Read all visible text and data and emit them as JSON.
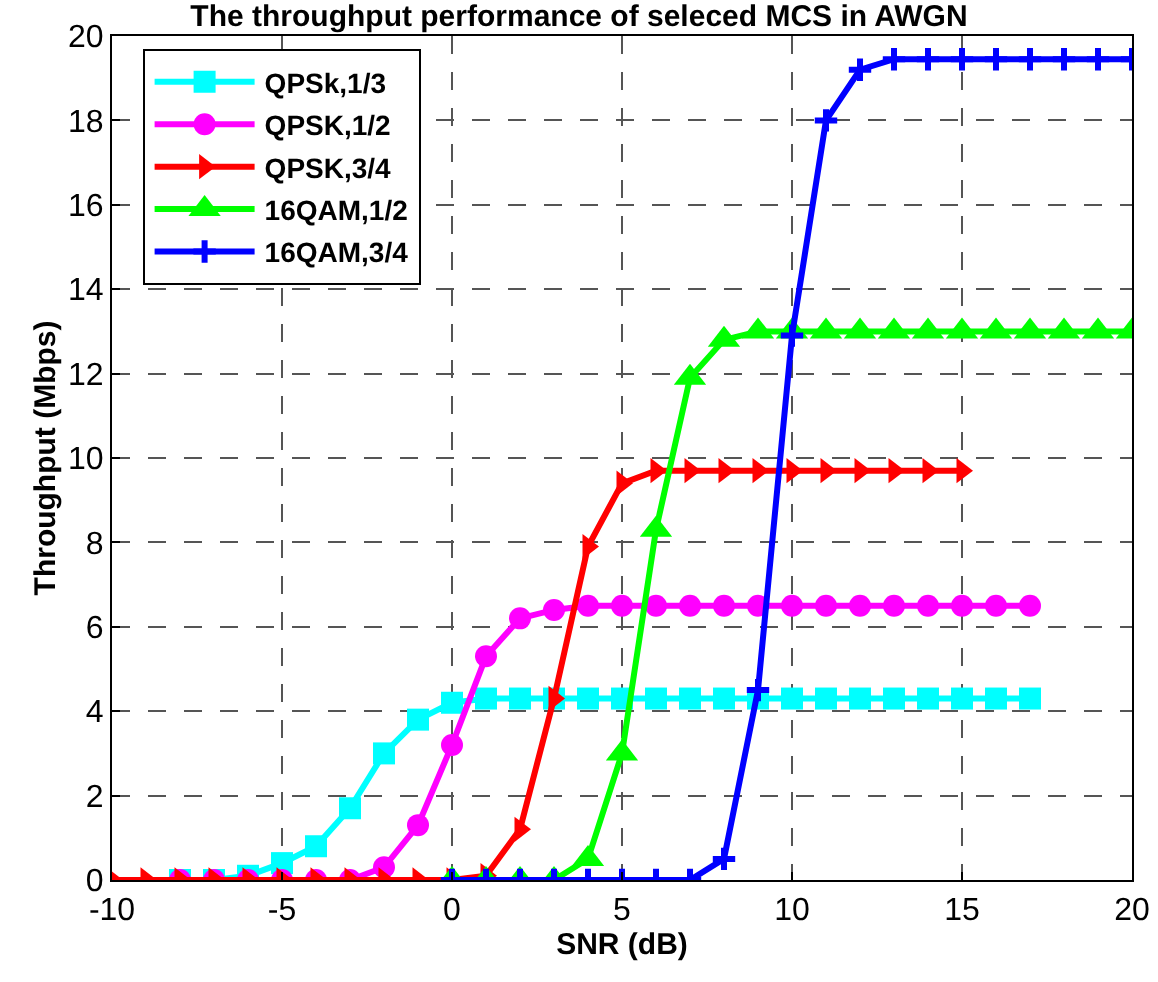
{
  "chart_data": {
    "type": "line",
    "title": "The throughput performance of seleced MCS in AWGN",
    "xlabel": "SNR (dB)",
    "ylabel": "Throughput (Mbps)",
    "xlim": [
      -10,
      20
    ],
    "xticks": [
      -10,
      -5,
      0,
      5,
      10,
      15,
      20
    ],
    "ylim": [
      0,
      20
    ],
    "yticks": [
      0,
      2,
      4,
      6,
      8,
      10,
      12,
      14,
      16,
      18,
      20
    ],
    "grid": true,
    "legend": "top left",
    "series": [
      {
        "name": "QPSk,1/3",
        "color": "#00ffff",
        "marker": "square",
        "x": [
          -8,
          -7,
          -6,
          -5,
          -4,
          -3,
          -2,
          -1,
          0,
          1,
          2,
          3,
          4,
          5,
          6,
          7,
          8,
          9,
          10,
          11,
          12,
          13,
          14,
          15,
          16,
          17
        ],
        "values": [
          0,
          0,
          0.1,
          0.4,
          0.8,
          1.7,
          3.0,
          3.8,
          4.2,
          4.3,
          4.3,
          4.3,
          4.3,
          4.3,
          4.3,
          4.3,
          4.3,
          4.3,
          4.3,
          4.3,
          4.3,
          4.3,
          4.3,
          4.3,
          4.3,
          4.3
        ]
      },
      {
        "name": "QPSK,1/2",
        "color": "#ff00ff",
        "marker": "circle",
        "x": [
          -8,
          -7,
          -6,
          -5,
          -4,
          -3,
          -2,
          -1,
          0,
          1,
          2,
          3,
          4,
          5,
          6,
          7,
          8,
          9,
          10,
          11,
          12,
          13,
          14,
          15,
          16,
          17
        ],
        "values": [
          0,
          0,
          0,
          0,
          0,
          0,
          0.3,
          1.3,
          3.2,
          5.3,
          6.2,
          6.4,
          6.5,
          6.5,
          6.5,
          6.5,
          6.5,
          6.5,
          6.5,
          6.5,
          6.5,
          6.5,
          6.5,
          6.5,
          6.5,
          6.5
        ]
      },
      {
        "name": "QPSK,3/4",
        "color": "#ff0000",
        "marker": "triangle-right",
        "x": [
          -10,
          -9,
          -8,
          -7,
          -6,
          -5,
          -4,
          -3,
          -2,
          -1,
          0,
          1,
          2,
          3,
          4,
          5,
          6,
          7,
          8,
          9,
          10,
          11,
          12,
          13,
          14,
          15
        ],
        "values": [
          0,
          0,
          0,
          0,
          0,
          0,
          0,
          0,
          0,
          0,
          0,
          0.1,
          1.2,
          4.3,
          7.9,
          9.4,
          9.7,
          9.7,
          9.7,
          9.7,
          9.7,
          9.7,
          9.7,
          9.7,
          9.7,
          9.7
        ]
      },
      {
        "name": "16QAM,1/2",
        "color": "#00ff00",
        "marker": "triangle",
        "x": [
          0,
          1,
          2,
          3,
          4,
          5,
          6,
          7,
          8,
          9,
          10,
          11,
          12,
          13,
          14,
          15,
          16,
          17,
          18,
          19,
          20
        ],
        "values": [
          0,
          0,
          0,
          0,
          0.5,
          3.0,
          8.3,
          11.9,
          12.8,
          13.0,
          13.0,
          13.0,
          13.0,
          13.0,
          13.0,
          13.0,
          13.0,
          13.0,
          13.0,
          13.0,
          13.0
        ]
      },
      {
        "name": "16QAM,3/4",
        "color": "#0000ff",
        "marker": "cross",
        "x": [
          0,
          1,
          2,
          3,
          4,
          5,
          6,
          7,
          8,
          9,
          10,
          11,
          12,
          13,
          14,
          15,
          16,
          17,
          18,
          19,
          20
        ],
        "values": [
          0,
          0,
          0,
          0,
          0,
          0,
          0,
          0,
          0.5,
          4.5,
          12.9,
          18.0,
          19.2,
          19.45,
          19.45,
          19.45,
          19.45,
          19.45,
          19.45,
          19.45,
          19.45
        ]
      }
    ]
  }
}
